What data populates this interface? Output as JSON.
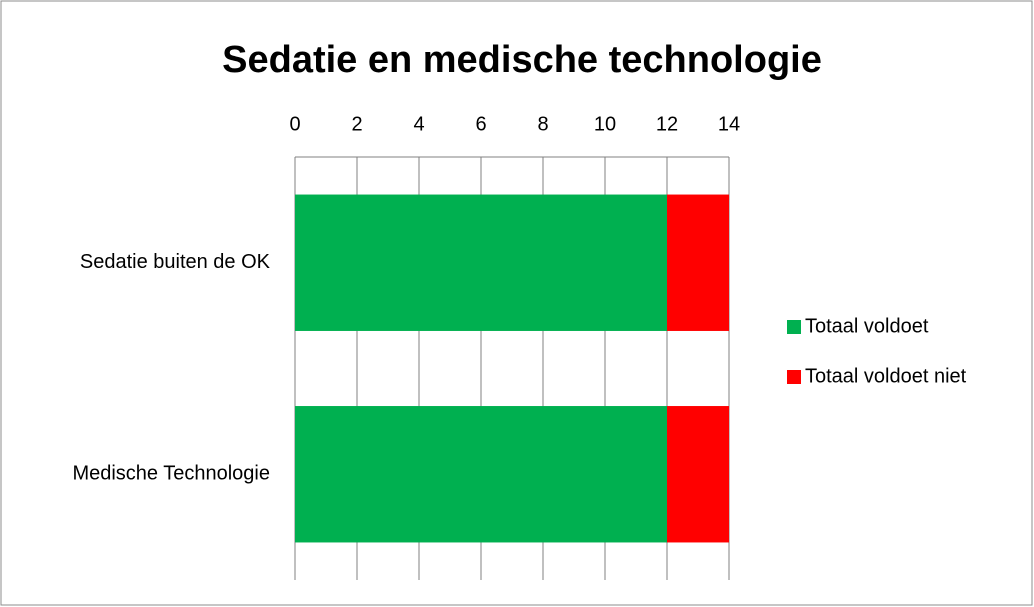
{
  "chart_data": {
    "type": "stacked_barh",
    "title": "Sedatie en medische technologie",
    "categories": [
      "Sedatie buiten de OK",
      "Medische Technologie"
    ],
    "series": [
      {
        "name": "Totaal voldoet",
        "color": "#00b050",
        "values": [
          12,
          12
        ]
      },
      {
        "name": "Totaal voldoet niet",
        "color": "#ff0000",
        "values": [
          2,
          2
        ]
      }
    ],
    "xlim": [
      0,
      14
    ],
    "xticks": [
      0,
      2,
      4,
      6,
      8,
      10,
      12,
      14
    ],
    "grid": true,
    "legend": "right"
  }
}
